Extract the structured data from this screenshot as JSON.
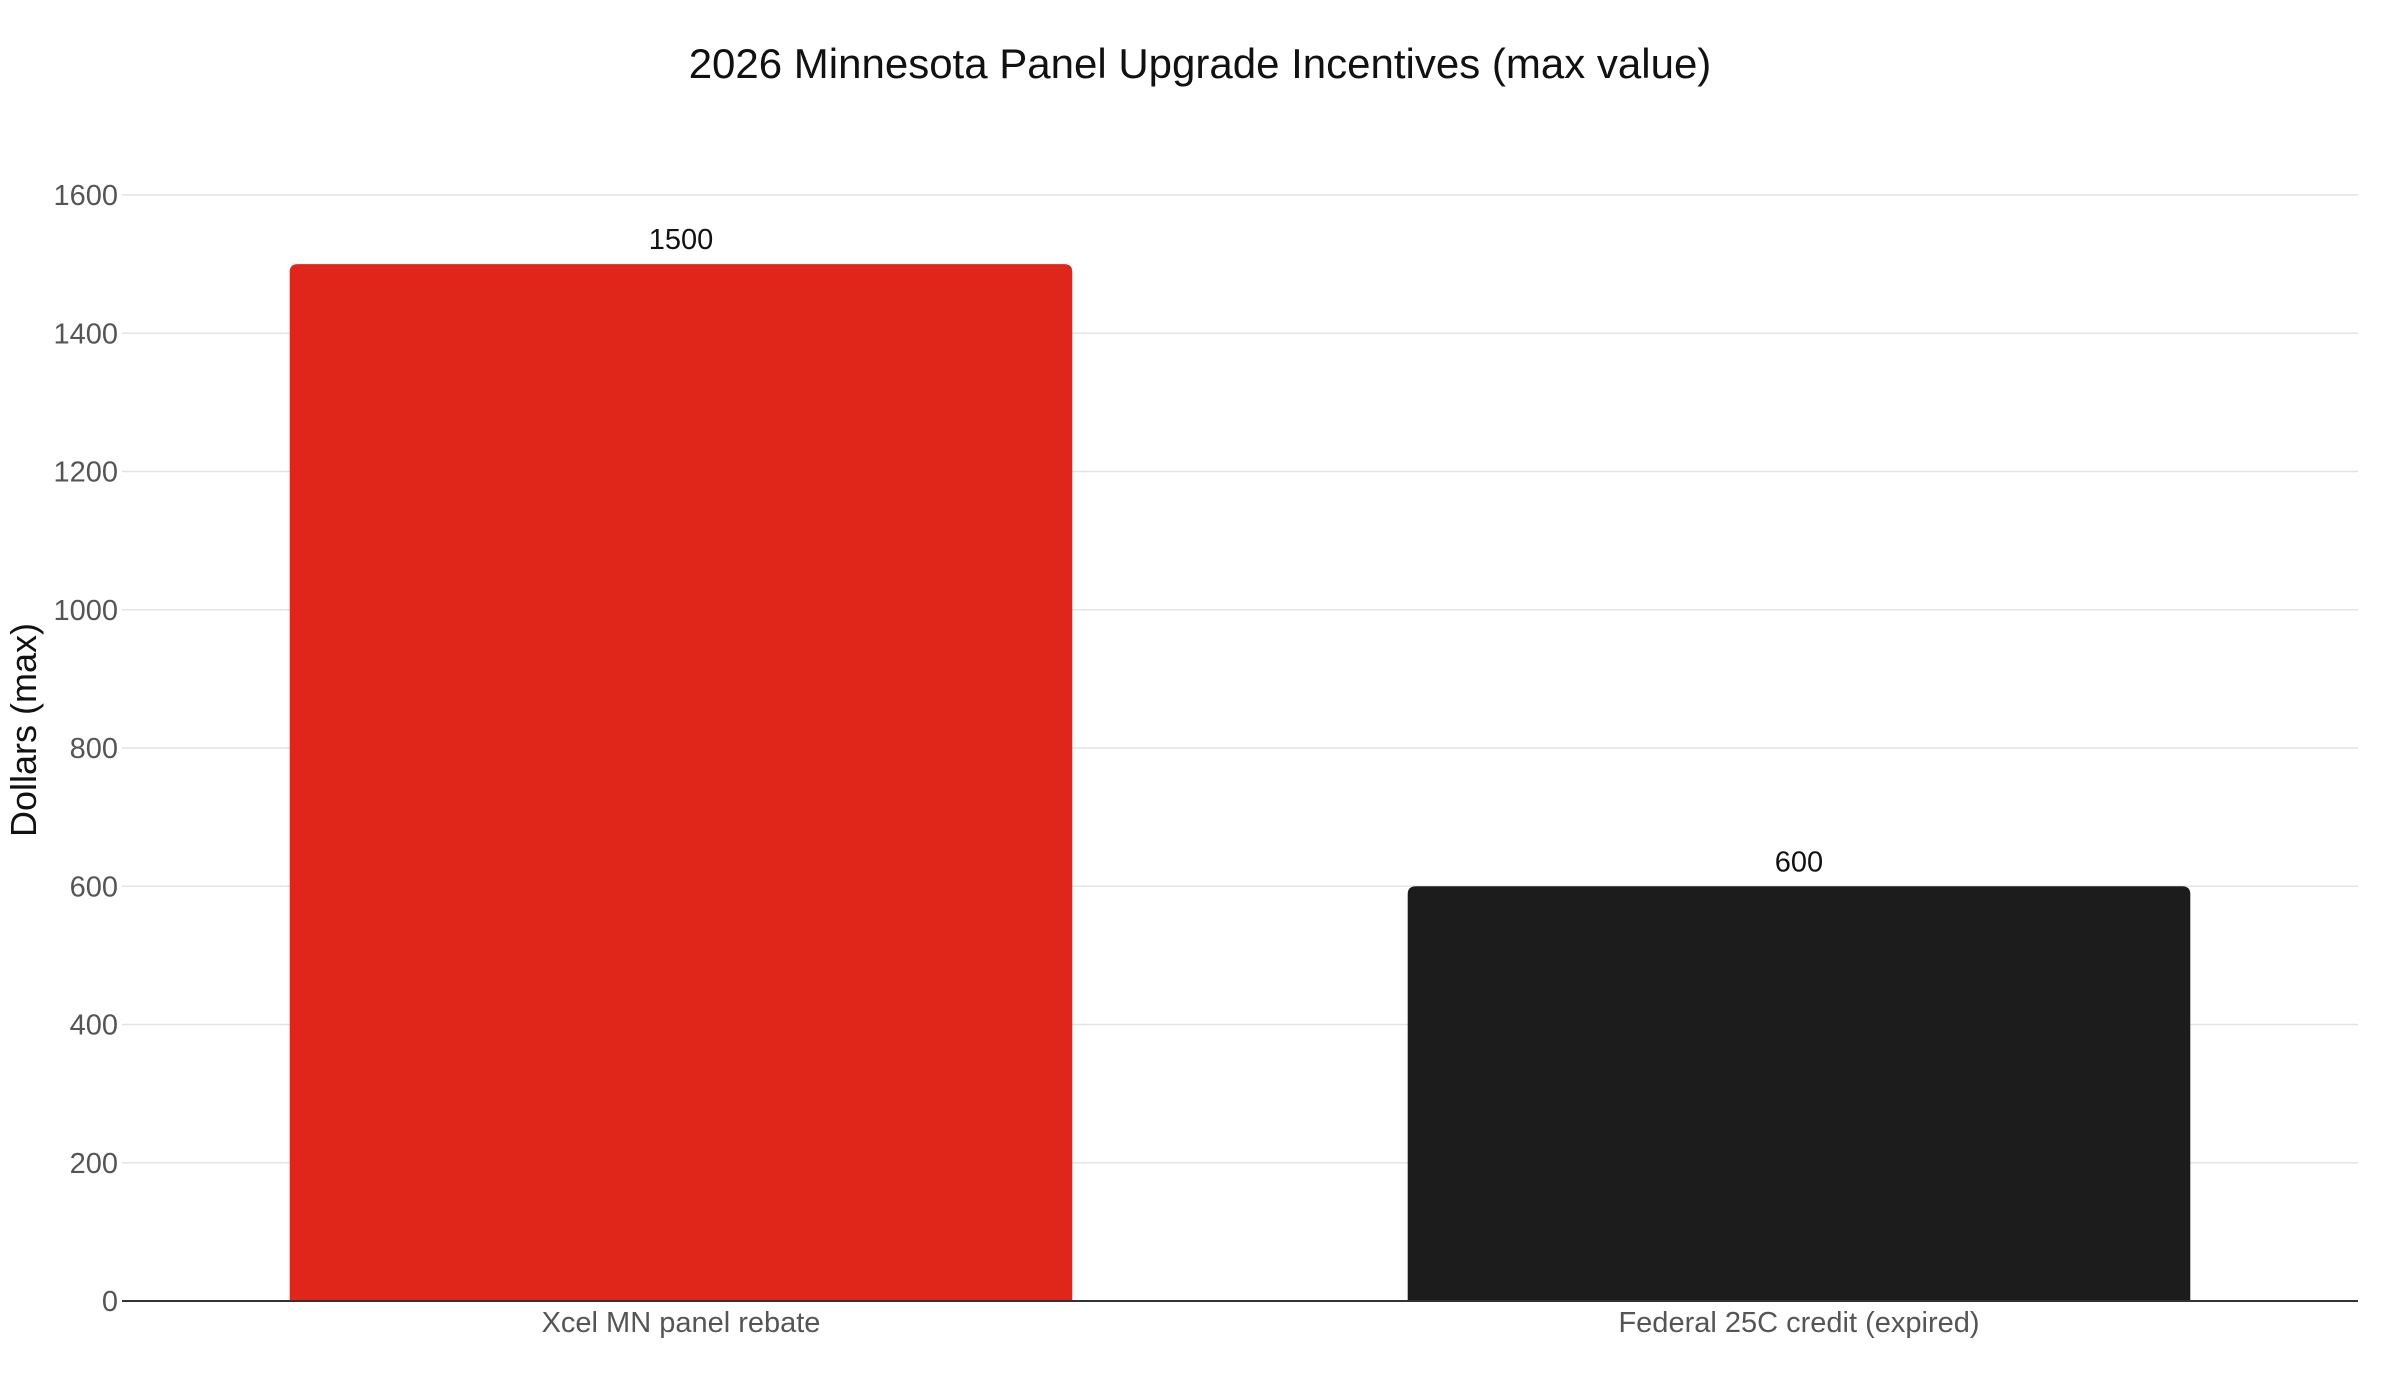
{
  "chart_data": {
    "type": "bar",
    "title": "2026 Minnesota Panel Upgrade Incentives (max value)",
    "xlabel": "",
    "ylabel": "Dollars (max)",
    "categories": [
      "Xcel MN panel rebate",
      "Federal 25C credit (expired)"
    ],
    "values": [
      1500,
      600
    ],
    "bar_colors": [
      "#e0251b",
      "#1c1c1c"
    ],
    "data_labels": [
      "1500",
      "600"
    ],
    "ylim": [
      0,
      1600
    ],
    "yticks": [
      0,
      200,
      400,
      600,
      800,
      1000,
      1200,
      1400,
      1600
    ],
    "ytick_labels": [
      "0",
      "200",
      "400",
      "600",
      "800",
      "1000",
      "1200",
      "1400",
      "1600"
    ],
    "grid": true,
    "legend": "none"
  }
}
